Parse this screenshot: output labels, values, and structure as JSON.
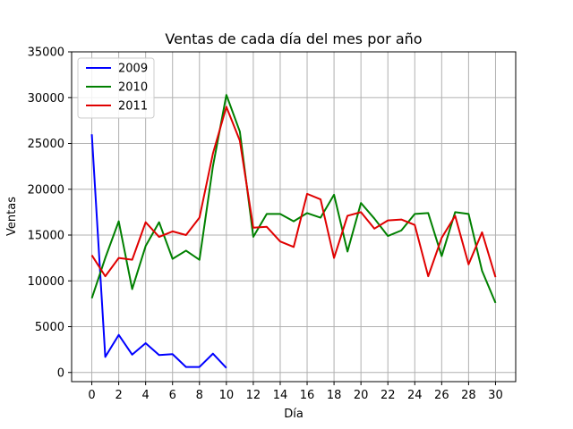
{
  "chart_data": {
    "type": "line",
    "title": "Ventas de cada día del mes por año",
    "xlabel": "Día",
    "ylabel": "Ventas",
    "xlim": [
      -1.5,
      31.5
    ],
    "ylim": [
      -1000,
      35000
    ],
    "xticks": [
      0,
      2,
      4,
      6,
      8,
      10,
      12,
      14,
      16,
      18,
      20,
      22,
      24,
      26,
      28,
      30
    ],
    "yticks": [
      0,
      5000,
      10000,
      15000,
      20000,
      25000,
      30000,
      35000
    ],
    "grid": true,
    "legend_position": "top-left",
    "series": [
      {
        "name": "2009",
        "color": "#0000ff",
        "x": [
          0,
          1,
          2,
          3,
          4,
          5,
          6,
          7,
          8,
          9,
          10
        ],
        "values": [
          26000,
          1700,
          4100,
          1950,
          3200,
          1900,
          2000,
          600,
          600,
          2050,
          500
        ]
      },
      {
        "name": "2010",
        "color": "#008000",
        "x": [
          0,
          1,
          2,
          3,
          4,
          5,
          6,
          7,
          8,
          9,
          10,
          11,
          12,
          13,
          14,
          15,
          16,
          17,
          18,
          19,
          20,
          21,
          22,
          23,
          24,
          25,
          26,
          27,
          28,
          29,
          30
        ],
        "values": [
          8100,
          12500,
          16500,
          9100,
          13800,
          16400,
          12400,
          13300,
          12300,
          22500,
          30300,
          26300,
          14800,
          17300,
          17300,
          16500,
          17400,
          16900,
          19400,
          13200,
          18500,
          16800,
          14900,
          15500,
          17300,
          17400,
          12700,
          17500,
          17300,
          11100,
          7600
        ]
      },
      {
        "name": "2011",
        "color": "#e00000",
        "x": [
          0,
          1,
          2,
          3,
          4,
          5,
          6,
          7,
          8,
          9,
          10,
          11,
          12,
          13,
          14,
          15,
          16,
          17,
          18,
          19,
          20,
          21,
          22,
          23,
          24,
          25,
          26,
          27,
          28,
          29,
          30
        ],
        "values": [
          12800,
          10500,
          12500,
          12300,
          16400,
          14800,
          15400,
          15000,
          16900,
          23900,
          29000,
          25300,
          15800,
          15900,
          14300,
          13700,
          19500,
          18900,
          12500,
          17100,
          17500,
          15700,
          16600,
          16700,
          16100,
          10500,
          14700,
          17100,
          11800,
          15300,
          10400
        ]
      }
    ]
  }
}
